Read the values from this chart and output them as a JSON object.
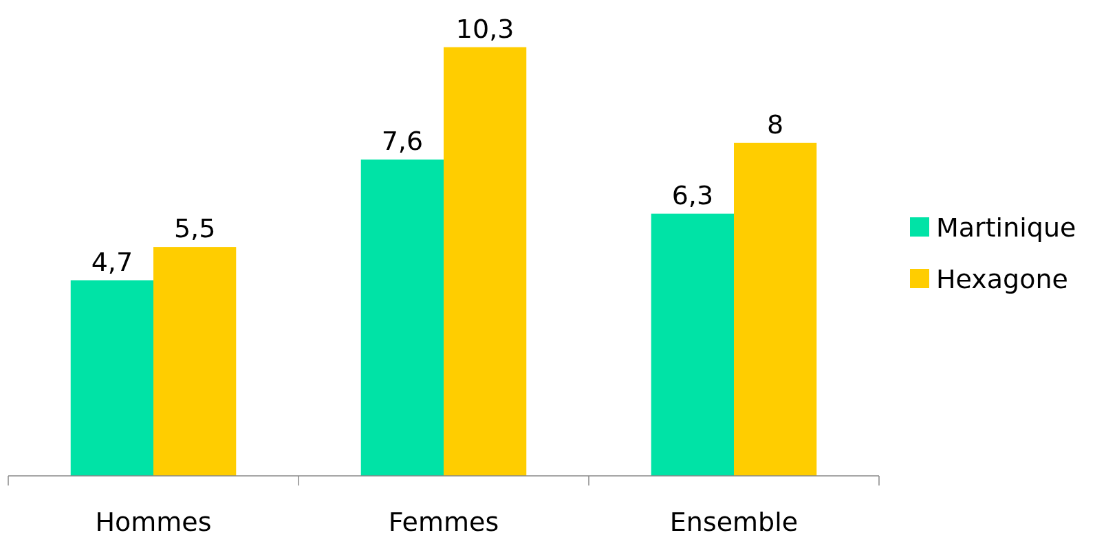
{
  "chart_data": {
    "type": "bar",
    "categories": [
      "Hommes",
      "Femmes",
      "Ensemble"
    ],
    "series": [
      {
        "name": "Martinique",
        "color": "#00e3a6",
        "values": [
          4.7,
          7.6,
          6.3
        ],
        "value_labels": [
          "4,7",
          "7,6",
          "6,3"
        ]
      },
      {
        "name": "Hexagone",
        "color": "#ffcd00",
        "values": [
          5.5,
          10.3,
          8
        ],
        "value_labels": [
          "5,5",
          "10,3",
          "8"
        ]
      }
    ],
    "legend": "right",
    "grid": false
  }
}
